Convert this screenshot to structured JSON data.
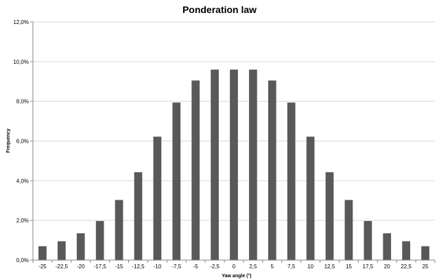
{
  "chart_data": {
    "type": "bar",
    "title": "Ponderation law",
    "xlabel": "Yaw angle (°)",
    "ylabel": "Frequency",
    "categories": [
      "-25",
      "-22,5",
      "-20",
      "-17,5",
      "-15",
      "-12,5",
      "-10",
      "-7,5",
      "-5",
      "-2,5",
      "0",
      "2,5",
      "5",
      "7,5",
      "10",
      "12,5",
      "15",
      "17,5",
      "20",
      "22,5",
      "25"
    ],
    "values": [
      0.7,
      0.95,
      1.35,
      1.97,
      3.03,
      4.43,
      6.22,
      7.94,
      9.05,
      9.6,
      9.6,
      9.6,
      9.05,
      7.94,
      6.22,
      4.43,
      3.03,
      1.97,
      1.35,
      0.95,
      0.7
    ],
    "ylim": [
      0,
      12
    ],
    "yticks": [
      0,
      2,
      4,
      6,
      8,
      10,
      12
    ],
    "ytick_labels": [
      "0,0%",
      "2,0%",
      "4,0%",
      "6,0%",
      "8,0%",
      "10,0%",
      "12,0%"
    ],
    "grid": true,
    "bar_color": "#595959",
    "grid_color": "#d9d9d9",
    "axis_color": "#868686"
  }
}
